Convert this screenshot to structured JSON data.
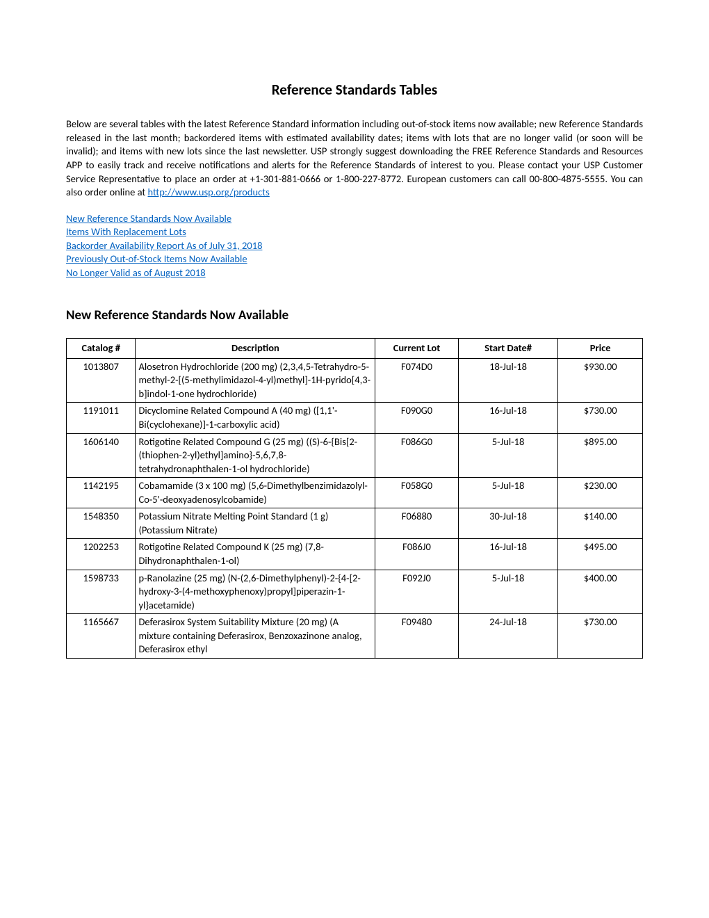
{
  "title": "Reference Standards Tables",
  "intro_parts": {
    "before_link": "Below are several tables with the latest Reference Standard information including out-of-stock items now available; new Reference Standards released in the last month; backordered items with estimated availability dates; items with lots that are no longer valid (or soon will be invalid); and items with new lots since the last newsletter. USP strongly suggest downloading the FREE Reference Standards and Resources APP to easily track and receive notifications and alerts for the Reference Standards of interest to you. Please contact your USP Customer Service Representative to place an order at +1-301-881-0666 or 1-800-227-8772. European customers can call 00-800-4875-5555. You can also order online at ",
    "link_text": "http://www.usp.org/products"
  },
  "nav_links": [
    "New Reference Standards Now Available",
    "Items With Replacement Lots",
    "Backorder Availability Report As of July 31, 2018",
    "Previously Out-of-Stock Items Now Available",
    "No Longer Valid as of August 2018"
  ],
  "section_heading": "New Reference Standards Now Available",
  "table": {
    "type": "table",
    "columns": [
      "Catalog #",
      "Description",
      "Current Lot",
      "Start Date#",
      "Price"
    ],
    "rows": [
      [
        "1013807",
        "Alosetron Hydrochloride (200 mg) (2,3,4,5-Tetrahydro-5-methyl-2-[(5-methylimidazol-4-yl)methyl]-1H-pyrido[4,3-b]indol-1-one hydrochloride)",
        "F074D0",
        "18-Jul-18",
        "$930.00"
      ],
      [
        "1191011",
        "Dicyclomine Related Compound A (40 mg) ([1,1'-Bi(cyclohexane)]-1-carboxylic acid)",
        "F090G0",
        "16-Jul-18",
        "$730.00"
      ],
      [
        "1606140",
        "Rotigotine Related Compound G (25 mg) ((S)-6-{Bis[2-(thiophen-2-yl)ethyl]amino}-5,6,7,8-tetrahydronaphthalen-1-ol hydrochloride)",
        "F086G0",
        "5-Jul-18",
        "$895.00"
      ],
      [
        "1142195",
        "Cobamamide (3 x 100 mg) (5,6-Dimethylbenzimidazolyl-Co-5'-deoxyadenosylcobamide)",
        "F058G0",
        "5-Jul-18",
        "$230.00"
      ],
      [
        "1548350",
        "Potassium Nitrate Melting Point Standard (1 g) (Potassium Nitrate)",
        "F06880",
        "30-Jul-18",
        "$140.00"
      ],
      [
        "1202253",
        "Rotigotine Related Compound K (25 mg) (7,8-Dihydronaphthalen-1-ol)",
        "F086J0",
        "16-Jul-18",
        "$495.00"
      ],
      [
        "1598733",
        "p-Ranolazine (25 mg) (N-(2,6-Dimethylphenyl)-2-{4-[2-hydroxy-3-(4-methoxyphenoxy)propyl]piperazin-1-yl}acetamide)",
        "F092J0",
        "5-Jul-18",
        "$400.00"
      ],
      [
        "1165667",
        "Deferasirox System Suitability Mixture (20 mg) (A mixture containing Deferasirox, Benzoxazinone analog, Deferasirox ethyl",
        "F09480",
        "24-Jul-18",
        "$730.00"
      ]
    ],
    "align": [
      "center",
      "left",
      "center",
      "center",
      "center"
    ],
    "border_color": "#000000",
    "header_bg": "#ffffff",
    "header_weight": "bold"
  },
  "link_color": "#0563c1",
  "text_color": "#000000",
  "background_color": "#ffffff",
  "font_family": "Calibri",
  "title_fontsize": 21,
  "body_fontsize": 14.5,
  "h2_fontsize": 19
}
